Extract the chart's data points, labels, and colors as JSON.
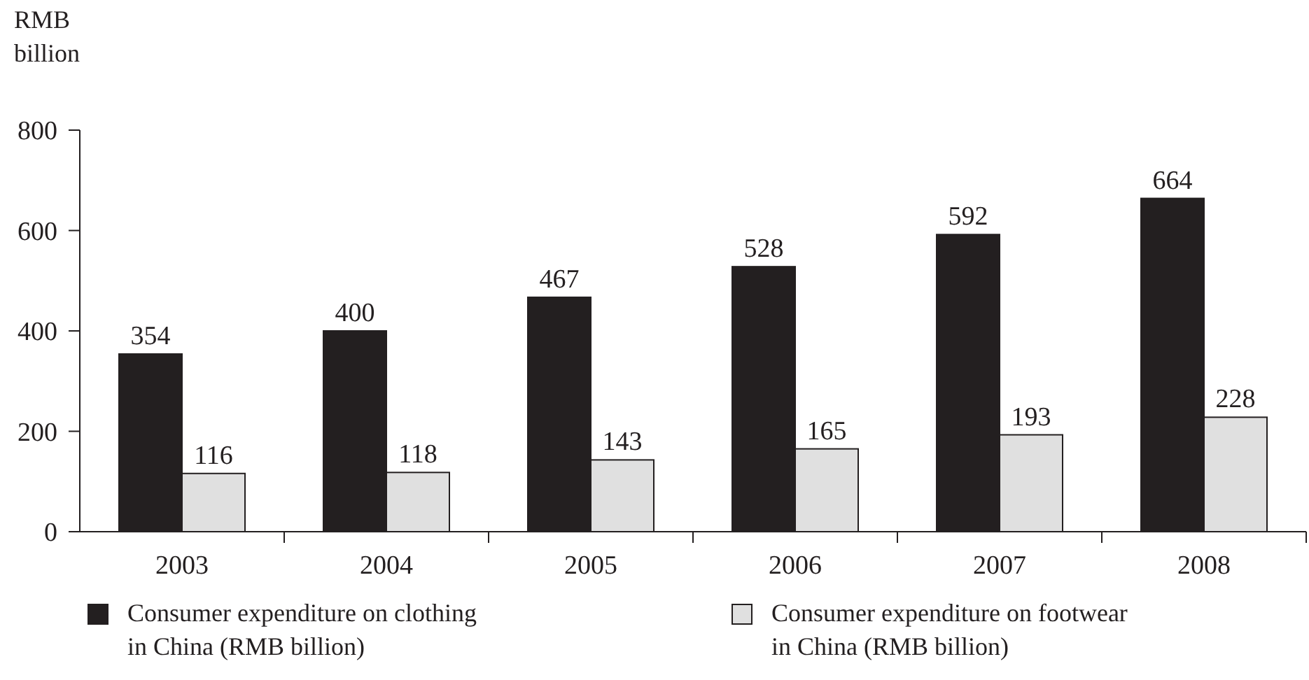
{
  "chart_data": {
    "type": "bar",
    "ylabel": "RMB billion",
    "categories": [
      "2003",
      "2004",
      "2005",
      "2006",
      "2007",
      "2008"
    ],
    "series": [
      {
        "name": "Consumer expenditure on clothing in China (RMB billion)",
        "color": "#231f20",
        "values": [
          354,
          400,
          467,
          528,
          592,
          664
        ]
      },
      {
        "name": "Consumer expenditure on footwear in China (RMB billion)",
        "color": "#e0e0e0",
        "values": [
          116,
          118,
          143,
          165,
          193,
          228
        ]
      }
    ],
    "ylim": [
      0,
      800
    ],
    "yticks": [
      0,
      200,
      400,
      600,
      800
    ],
    "data_labels": true,
    "grid": false,
    "legend": "bottom"
  }
}
